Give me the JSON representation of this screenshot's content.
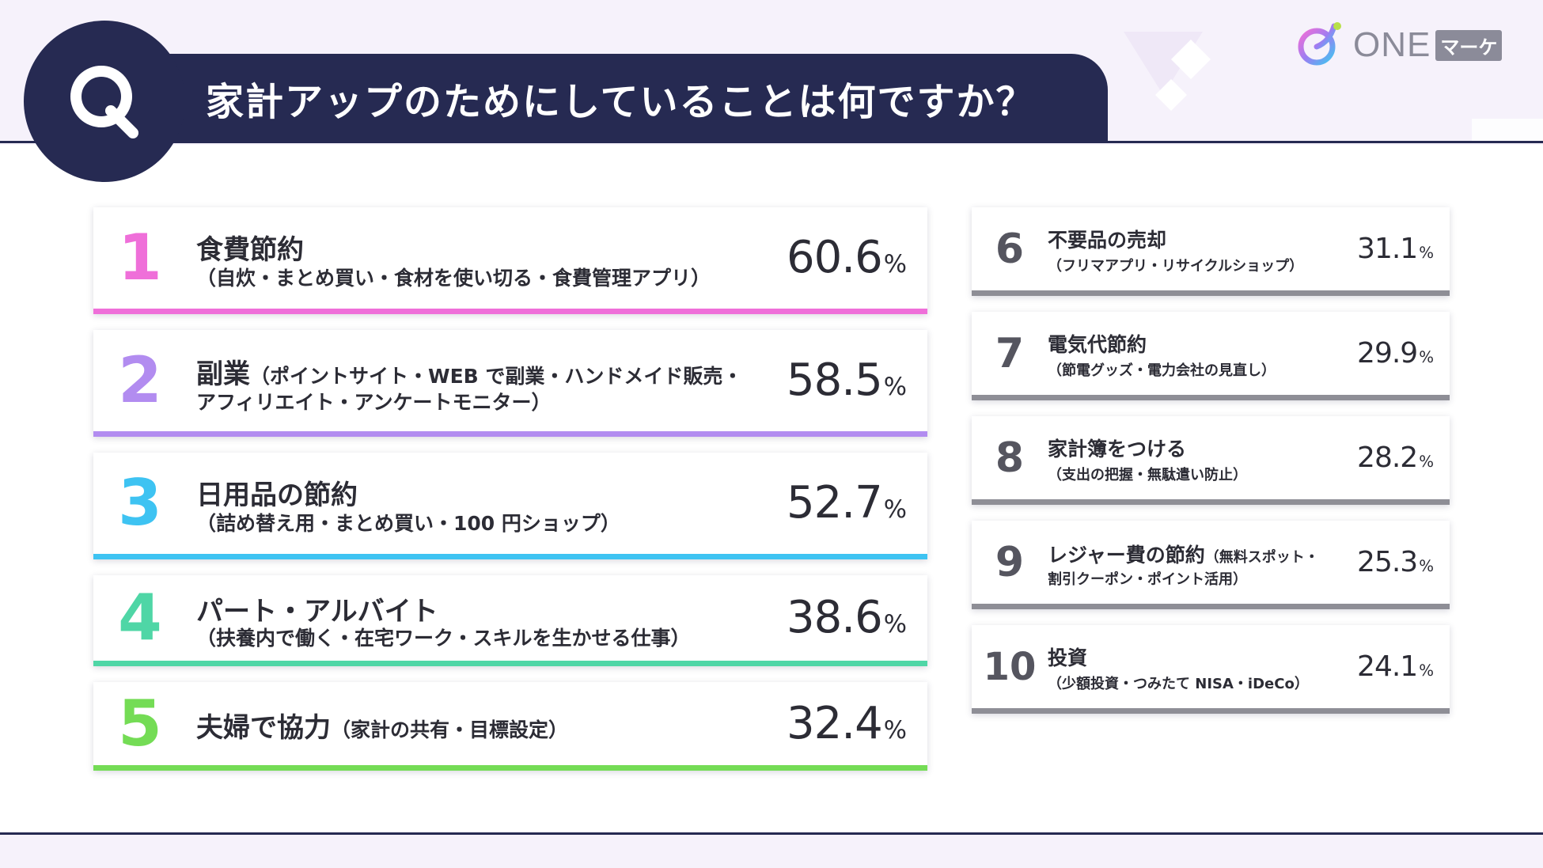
{
  "header": {
    "title": "家計アップのためにしていることは何ですか？",
    "q_letter": "Q",
    "brand_text": "ONE",
    "brand_badge": "マーケ"
  },
  "colors": {
    "navy": "#262a52",
    "rank1": "#ef6fd9",
    "rank2": "#b28cf0",
    "rank3": "#3ec3f2",
    "rank4": "#4fd6a6",
    "rank5": "#74dc55",
    "gray_bar": "#8e8e96",
    "gray_rank": "#55555f"
  },
  "chart_data": {
    "type": "table",
    "title": "家計アップのためにしていることは何ですか？",
    "unit": "%",
    "items": [
      {
        "rank": "1",
        "label": "食費節約",
        "sub": "（自炊・まとめ買い・食材を使い切る・食費管理アプリ）",
        "value": 60.6,
        "value_text": "60.6"
      },
      {
        "rank": "2",
        "label": "副業",
        "sub": "（ポイントサイト・WEB で副業・ハンドメイド販売・",
        "sub2": "アフィリエイト・アンケートモニター）",
        "value": 58.5,
        "value_text": "58.5"
      },
      {
        "rank": "3",
        "label": "日用品の節約",
        "sub": "（詰め替え用・まとめ買い・100 円ショップ）",
        "value": 52.7,
        "value_text": "52.7"
      },
      {
        "rank": "4",
        "label": "パート・アルバイト",
        "sub": "（扶養内で働く・在宅ワーク・スキルを生かせる仕事）",
        "value": 38.6,
        "value_text": "38.6"
      },
      {
        "rank": "5",
        "label": "夫婦で協力",
        "sub": "（家計の共有・目標設定）",
        "value": 32.4,
        "value_text": "32.4"
      },
      {
        "rank": "6",
        "label": "不要品の売却",
        "sub": "（フリマアプリ・リサイクルショップ）",
        "value": 31.1,
        "value_text": "31.1"
      },
      {
        "rank": "7",
        "label": "電気代節約",
        "sub": "（節電グッズ・電力会社の見直し）",
        "value": 29.9,
        "value_text": "29.9"
      },
      {
        "rank": "8",
        "label": "家計簿をつける",
        "sub": "（支出の把握・無駄遣い防止）",
        "value": 28.2,
        "value_text": "28.2"
      },
      {
        "rank": "9",
        "label": "レジャー費の節約",
        "sub": "（無料スポット・",
        "sub2": "割引クーポン・ポイント活用）",
        "value": 25.3,
        "value_text": "25.3"
      },
      {
        "rank": "10",
        "label": "投資",
        "sub": "（少額投資・つみたて NISA・iDeCo）",
        "value": 24.1,
        "value_text": "24.1"
      }
    ]
  }
}
